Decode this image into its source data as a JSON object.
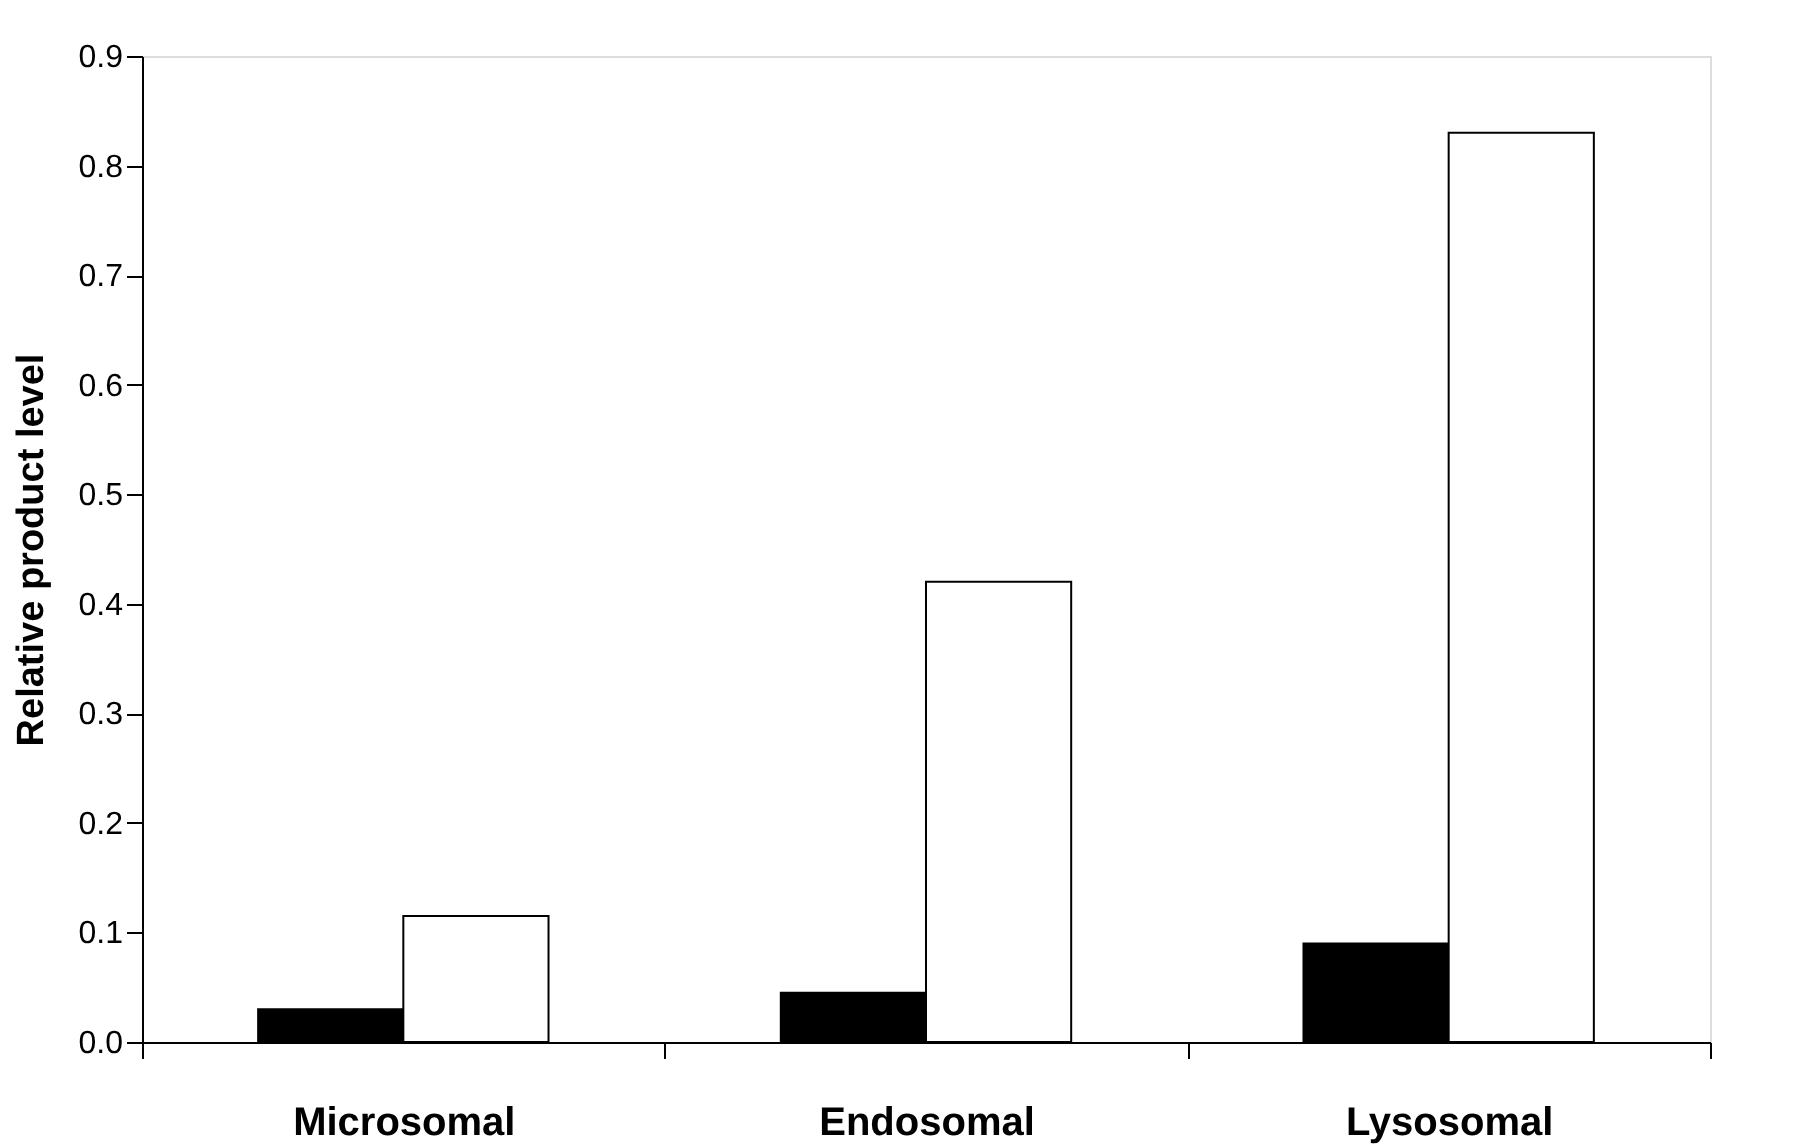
{
  "chart_data": {
    "type": "bar",
    "ylabel": "Relative product level",
    "categories": [
      "Microsomal",
      "Endosomal",
      "Lysosomal"
    ],
    "series": [
      {
        "color": "#000000",
        "values": [
          0.03,
          0.045,
          0.09
        ]
      },
      {
        "color": "#ffffff",
        "values": [
          0.115,
          0.42,
          0.83
        ]
      }
    ],
    "ylim": [
      0,
      0.9
    ],
    "yticks": [
      {
        "value": 0,
        "label": "0.0"
      },
      {
        "value": 0.1,
        "label": "0.1"
      },
      {
        "value": 0.2,
        "label": "0.2"
      },
      {
        "value": 0.3,
        "label": "0.3"
      },
      {
        "value": 0.4,
        "label": "0.4"
      },
      {
        "value": 0.5,
        "label": "0.5"
      },
      {
        "value": 0.6,
        "label": "0.6"
      },
      {
        "value": 0.7,
        "label": "0.7"
      },
      {
        "value": 0.8,
        "label": "0.8"
      },
      {
        "value": 0.9,
        "label": "0.9"
      }
    ],
    "grid": false,
    "legend": false
  }
}
